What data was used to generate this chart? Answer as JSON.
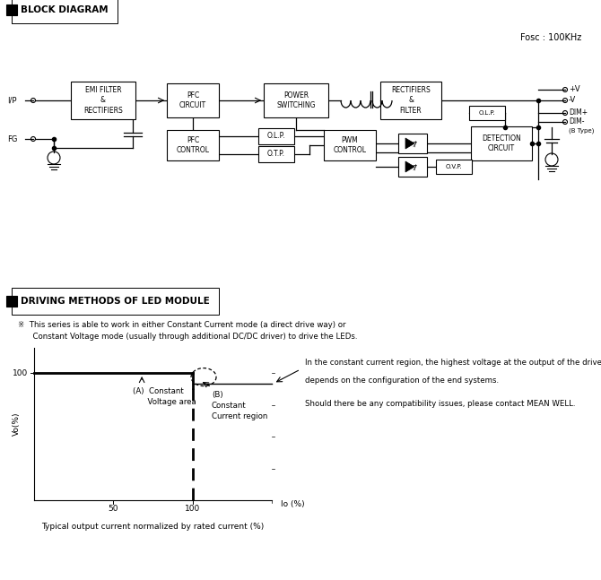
{
  "bg_color": "#ffffff",
  "fig_width": 6.7,
  "fig_height": 6.47,
  "section1_title": "BLOCK DIAGRAM",
  "fosc_label": "Fosc : 100KHz",
  "section2_title": "DRIVING METHODS OF LED MODULE",
  "note_text": "※  This series is able to work in either Constant Current mode (a direct drive way) or\n      Constant Voltage mode (usually through additional DC/DC driver) to drive the LEDs.",
  "graph": {
    "xlim": [
      0,
      150
    ],
    "ylim": [
      0,
      120
    ],
    "xticks": [
      50,
      100
    ],
    "yticks": [
      100
    ],
    "xlabel": "Io (%)",
    "ylabel": "Vo(%)",
    "caption": "Typical output current normalized by rated current (%)",
    "label_A": "(A)  Constant\n      Voltage area",
    "label_B": "(B)\nConstant\nCurrent region",
    "right_text_line1": "In the constant current region, the highest voltage at the output of the driver",
    "right_text_line2": "depends on the configuration of the end systems.",
    "right_text_line3": "Should there be any compatibility issues, please contact MEAN WELL."
  }
}
